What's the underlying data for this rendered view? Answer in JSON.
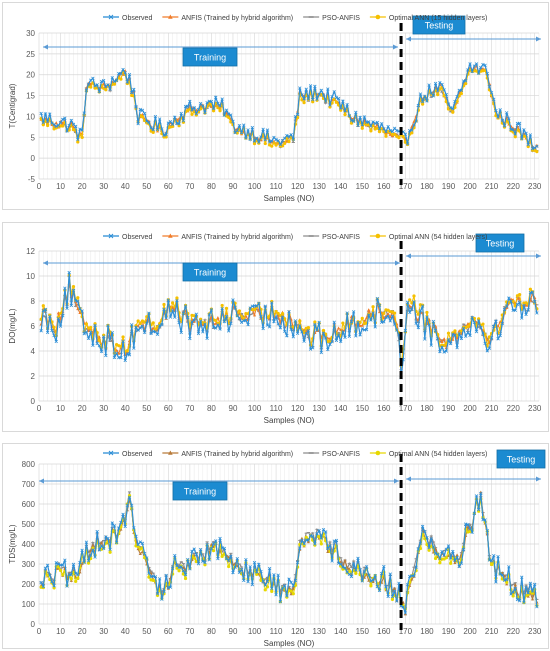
{
  "charts": [
    {
      "legend": [
        "Observed",
        "ANFIS (Trained by hybrid algorithm)",
        "PSO-ANFIS",
        "Optimal ANN (15 hidden layers)"
      ],
      "ylabel": "T(Centigrad)",
      "xlabel": "Samples (NO)",
      "training_label": "Training",
      "testing_label": "Testing"
    },
    {
      "legend": [
        "Observed",
        "ANFIS (Trained by hybrid algorithm)",
        "PSO-ANFIS",
        "Optimal ANN (54 hidden layers)"
      ],
      "ylabel": "DO(mg/L)",
      "xlabel": "Samples (NO)",
      "training_label": "Training",
      "testing_label": "Testing"
    },
    {
      "legend": [
        "Observed",
        "ANFIS (Trained by hybrid algorithm)",
        "PSO-ANFIS",
        "Optimal ANN (54 hidden layers)"
      ],
      "ylabel": "TDS(mg/L)",
      "xlabel": "Samples (NO)",
      "training_label": "Training",
      "testing_label": "Testing"
    }
  ],
  "chart_data": [
    {
      "type": "line",
      "x_ticks": [
        0,
        10,
        20,
        30,
        40,
        50,
        60,
        70,
        80,
        90,
        100,
        110,
        120,
        130,
        140,
        150,
        160,
        170,
        180,
        190,
        200,
        210,
        220,
        230
      ],
      "y_ticks": [
        -5,
        0,
        5,
        10,
        15,
        20,
        25,
        30
      ],
      "xlim": [
        0,
        232
      ],
      "ylim": [
        -5,
        30
      ],
      "grid": true,
      "split_x": 168,
      "legend_position": "top",
      "colors": [
        "#2e8fd6",
        "#f07c2a",
        "#8c8c8c",
        "#f5c000"
      ],
      "anchors": [
        [
          0,
          10
        ],
        [
          15,
          8
        ],
        [
          20,
          5
        ],
        [
          22,
          18
        ],
        [
          30,
          17
        ],
        [
          40,
          21
        ],
        [
          44,
          16
        ],
        [
          46,
          10
        ],
        [
          58,
          7
        ],
        [
          62,
          9
        ],
        [
          70,
          12
        ],
        [
          80,
          13
        ],
        [
          86,
          12
        ],
        [
          90,
          8
        ],
        [
          100,
          6
        ],
        [
          110,
          4
        ],
        [
          118,
          5
        ],
        [
          121,
          15
        ],
        [
          130,
          16
        ],
        [
          140,
          13
        ],
        [
          145,
          10
        ],
        [
          155,
          8
        ],
        [
          160,
          7
        ],
        [
          167,
          5
        ],
        [
          170,
          4
        ],
        [
          178,
          15
        ],
        [
          186,
          17
        ],
        [
          192,
          11
        ],
        [
          200,
          22
        ],
        [
          208,
          21
        ],
        [
          212,
          11
        ],
        [
          220,
          8
        ],
        [
          226,
          5
        ],
        [
          230,
          3
        ]
      ],
      "amplitude": 2.0,
      "model_offset": [
        0,
        -0.4,
        -0.6,
        -0.8
      ]
    },
    {
      "type": "line",
      "x_ticks": [
        0,
        10,
        20,
        30,
        40,
        50,
        60,
        70,
        80,
        90,
        100,
        110,
        120,
        130,
        140,
        150,
        160,
        170,
        180,
        190,
        200,
        210,
        220,
        230
      ],
      "y_ticks": [
        0,
        2,
        4,
        6,
        8,
        10,
        12
      ],
      "xlim": [
        0,
        232
      ],
      "ylim": [
        0,
        12
      ],
      "grid": true,
      "split_x": 168,
      "legend_position": "top",
      "colors": [
        "#2e8fd6",
        "#f07c2a",
        "#8c8c8c",
        "#f5c000"
      ],
      "anchors": [
        [
          0,
          7
        ],
        [
          8,
          6
        ],
        [
          14,
          9
        ],
        [
          20,
          6
        ],
        [
          30,
          5
        ],
        [
          40,
          4
        ],
        [
          46,
          6
        ],
        [
          55,
          6
        ],
        [
          62,
          7.5
        ],
        [
          70,
          6
        ],
        [
          80,
          6
        ],
        [
          90,
          7
        ],
        [
          100,
          6.5
        ],
        [
          110,
          7
        ],
        [
          120,
          6
        ],
        [
          125,
          5
        ],
        [
          135,
          5
        ],
        [
          145,
          6
        ],
        [
          155,
          7
        ],
        [
          165,
          7
        ],
        [
          168,
          3
        ],
        [
          172,
          8
        ],
        [
          180,
          6
        ],
        [
          190,
          4.5
        ],
        [
          200,
          6.5
        ],
        [
          210,
          5
        ],
        [
          220,
          8
        ],
        [
          230,
          7.5
        ]
      ],
      "amplitude": 1.3,
      "model_offset": [
        0,
        0.2,
        0.1,
        0.3
      ]
    },
    {
      "type": "line",
      "x_ticks": [
        0,
        10,
        20,
        30,
        40,
        50,
        60,
        70,
        80,
        90,
        100,
        110,
        120,
        130,
        140,
        150,
        160,
        170,
        180,
        190,
        200,
        210,
        220,
        230
      ],
      "y_ticks": [
        0,
        100,
        200,
        300,
        400,
        500,
        600,
        700,
        800
      ],
      "xlim": [
        0,
        232
      ],
      "ylim": [
        0,
        800
      ],
      "grid": true,
      "split_x": 168,
      "legend_position": "top",
      "colors": [
        "#2e8fd6",
        "#b87b3a",
        "#8c8c8c",
        "#e6d800"
      ],
      "anchors": [
        [
          0,
          230
        ],
        [
          10,
          260
        ],
        [
          18,
          220
        ],
        [
          22,
          380
        ],
        [
          30,
          420
        ],
        [
          38,
          450
        ],
        [
          42,
          650
        ],
        [
          45,
          390
        ],
        [
          50,
          300
        ],
        [
          57,
          150
        ],
        [
          62,
          280
        ],
        [
          70,
          300
        ],
        [
          80,
          400
        ],
        [
          90,
          310
        ],
        [
          100,
          260
        ],
        [
          110,
          190
        ],
        [
          118,
          150
        ],
        [
          121,
          420
        ],
        [
          128,
          470
        ],
        [
          135,
          380
        ],
        [
          142,
          330
        ],
        [
          150,
          260
        ],
        [
          160,
          220
        ],
        [
          167,
          150
        ],
        [
          170,
          100
        ],
        [
          178,
          460
        ],
        [
          186,
          350
        ],
        [
          195,
          340
        ],
        [
          205,
          650
        ],
        [
          210,
          300
        ],
        [
          220,
          200
        ],
        [
          230,
          130
        ]
      ],
      "amplitude": 70,
      "model_offset": [
        0,
        -10,
        5,
        -15
      ]
    }
  ]
}
